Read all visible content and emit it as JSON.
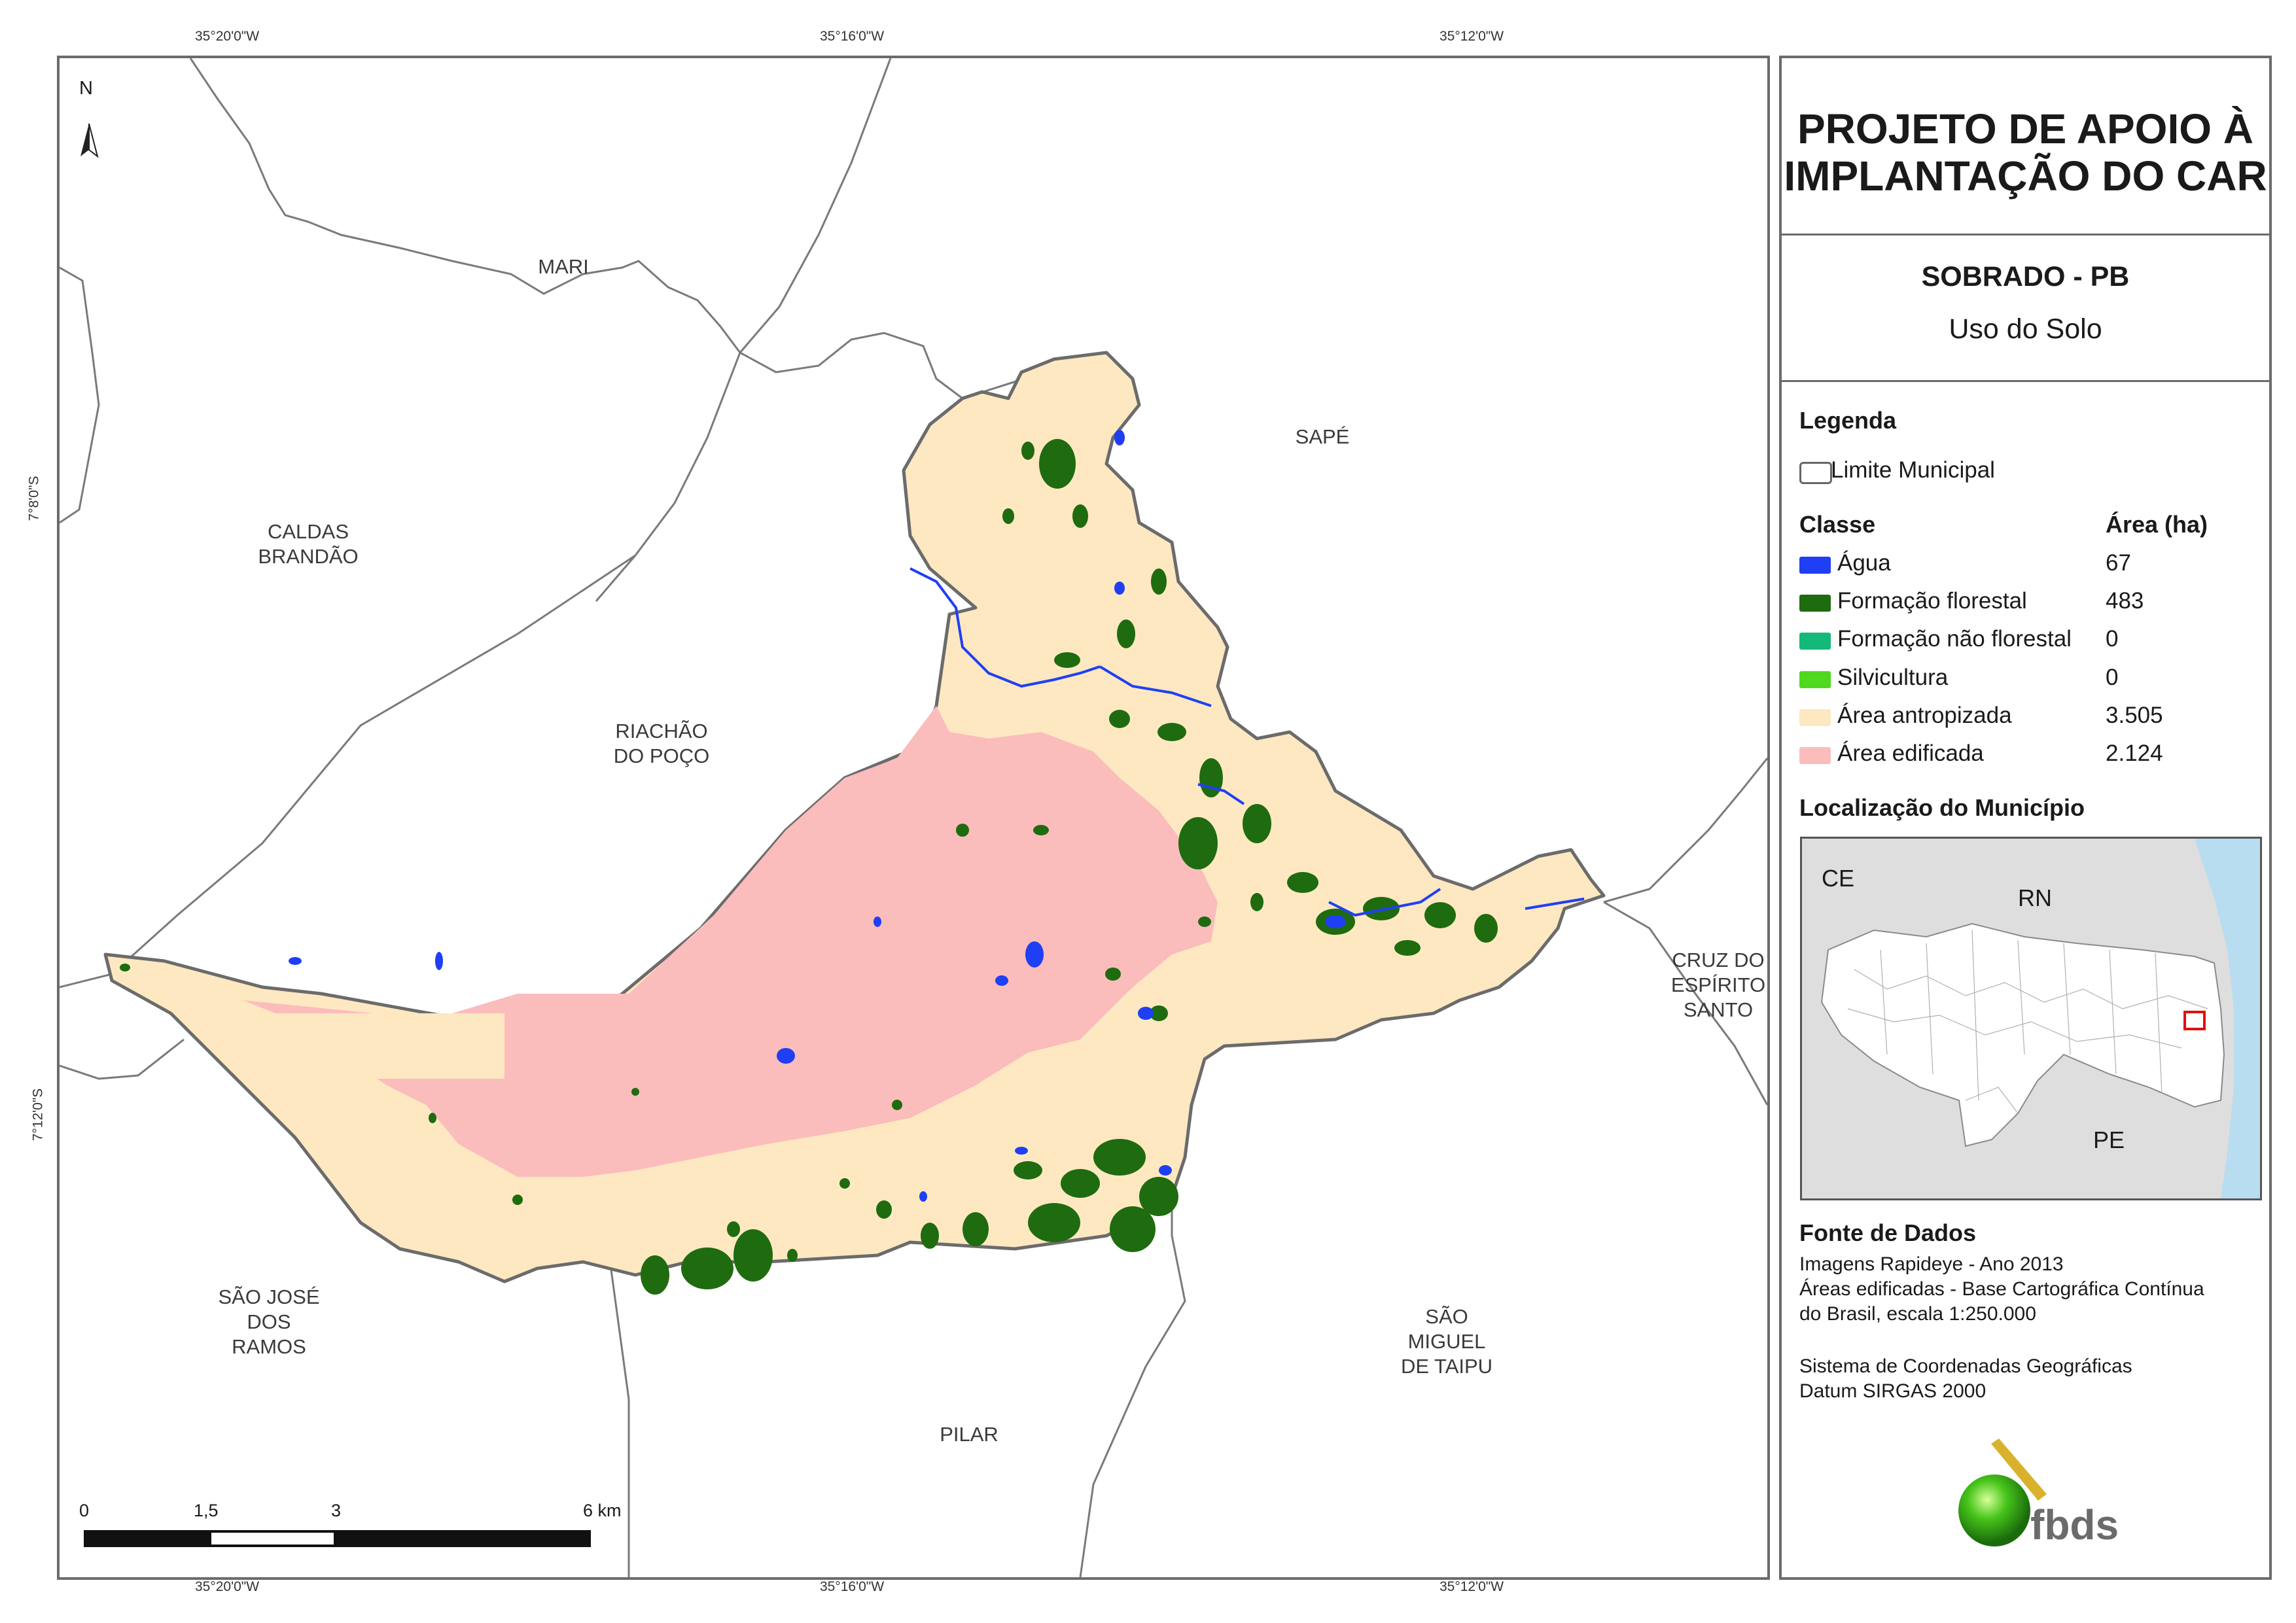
{
  "coordinates": {
    "top": [
      "35°20'0\"W",
      "35°16'0\"W",
      "35°12'0\"W"
    ],
    "bottom": [
      "35°20'0\"W",
      "35°16'0\"W",
      "35°12'0\"W"
    ],
    "left": [
      "7°8'0\"S",
      "7°12'0\"S"
    ]
  },
  "map": {
    "north_label": "N",
    "municipalities": {
      "mari": "MARI",
      "sape": "SAPÉ",
      "caldas": "CALDAS\nBRANDÃO",
      "riachao": "RIACHÃO\nDO POÇO",
      "cruz": "CRUZ DO\nESPÍRITO\nSANTO",
      "sao_jose": "SÃO JOSÉ\nDOS\nRAMOS",
      "sao_miguel": "SÃO\nMIGUEL\nDE TAIPU",
      "pilar": "PILAR"
    },
    "scale": {
      "ticks": [
        "0",
        "1,5",
        "3",
        "6 km"
      ]
    }
  },
  "panel": {
    "project_title": "PROJETO DE APOIO À\nIMPLANTAÇÃO DO CAR",
    "municipality": "SOBRADO - PB",
    "theme": "Uso do Solo",
    "legend_header": "Legenda",
    "limit_label": "Limite Municipal",
    "class_header": "Classe",
    "area_header": "Área (ha)",
    "classes": [
      {
        "label": "Água",
        "area": "67",
        "color": "#1f3ff5"
      },
      {
        "label": "Formação florestal",
        "area": "483",
        "color": "#1f6b0f"
      },
      {
        "label": "Formação não florestal",
        "area": "0",
        "color": "#13b87a"
      },
      {
        "label": "Silvicultura",
        "area": "0",
        "color": "#4fd81e"
      },
      {
        "label": "Área antropizada",
        "area": "3.505",
        "color": "#fde8c1"
      },
      {
        "label": "Área edificada",
        "area": "2.124",
        "color": "#fbbcbc"
      }
    ],
    "location_header": "Localização do Município",
    "location_labels": {
      "ce": "CE",
      "rn": "RN",
      "pe": "PE"
    },
    "source_header": "Fonte de Dados",
    "sources": [
      "Imagens Rapideye - Ano 2013",
      "Áreas edificadas - Base Cartográfica Contínua",
      "do Brasil, escala 1:250.000",
      "Sistema de Coordenadas Geográficas",
      "Datum SIRGAS 2000"
    ],
    "logo_text": "fbds"
  }
}
